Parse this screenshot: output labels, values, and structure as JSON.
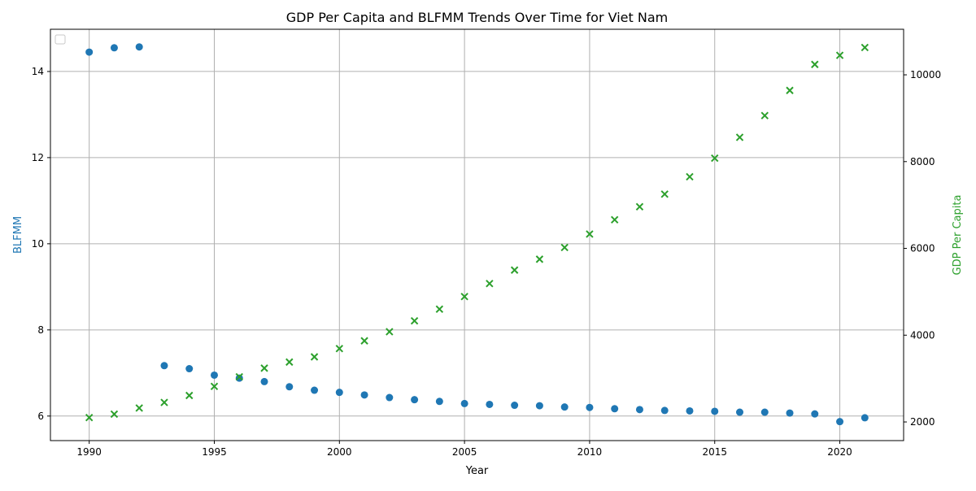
{
  "chart_data": {
    "type": "scatter",
    "title": "GDP Per Capita and BLFMM Trends Over Time for Viet Nam",
    "xlabel": "Year",
    "ylabel_left": "BLFMM",
    "ylabel_right": "GDP Per Capita",
    "xlim": [
      1988.45,
      2022.55
    ],
    "ylim_left": [
      5.43,
      14.98
    ],
    "ylim_right": [
      1570,
      11050
    ],
    "x_ticks": [
      1990,
      1995,
      2000,
      2005,
      2010,
      2015,
      2020
    ],
    "y_left_ticks": [
      6,
      8,
      10,
      12,
      14
    ],
    "y_right_ticks": [
      2000,
      4000,
      6000,
      8000,
      10000
    ],
    "grid": true,
    "legend": "top-left (empty)",
    "colors": {
      "blfmm": "#1f77b4",
      "gdp": "#2ca02c",
      "axis": "#000000",
      "grid": "#b0b0b0"
    },
    "series": [
      {
        "name": "BLFMM",
        "axis": "left",
        "marker": "circle",
        "x": [
          1990,
          1991,
          1992,
          1993,
          1994,
          1995,
          1996,
          1997,
          1998,
          1999,
          2000,
          2001,
          2002,
          2003,
          2004,
          2005,
          2006,
          2007,
          2008,
          2009,
          2010,
          2011,
          2012,
          2013,
          2014,
          2015,
          2016,
          2017,
          2018,
          2019,
          2020,
          2021
        ],
        "y": [
          14.45,
          14.55,
          14.57,
          7.17,
          7.1,
          6.95,
          6.88,
          6.8,
          6.68,
          6.6,
          6.55,
          6.49,
          6.43,
          6.38,
          6.34,
          6.29,
          6.27,
          6.25,
          6.24,
          6.21,
          6.2,
          6.17,
          6.15,
          6.13,
          6.12,
          6.11,
          6.09,
          6.09,
          6.07,
          6.05,
          5.87,
          5.96
        ]
      },
      {
        "name": "GDP Per Capita",
        "axis": "right",
        "marker": "x",
        "x": [
          1990,
          1991,
          1992,
          1993,
          1994,
          1995,
          1996,
          1997,
          1998,
          1999,
          2000,
          2001,
          2002,
          2003,
          2004,
          2005,
          2006,
          2007,
          2008,
          2009,
          2010,
          2011,
          2012,
          2013,
          2014,
          2015,
          2016,
          2017,
          2018,
          2019,
          2020,
          2021
        ],
        "y": [
          2100,
          2180,
          2320,
          2450,
          2610,
          2820,
          3040,
          3240,
          3380,
          3500,
          3690,
          3870,
          4080,
          4330,
          4600,
          4890,
          5190,
          5500,
          5750,
          6020,
          6330,
          6660,
          6960,
          7250,
          7650,
          8080,
          8560,
          9060,
          9640,
          10240,
          10450,
          10630
        ]
      }
    ]
  }
}
